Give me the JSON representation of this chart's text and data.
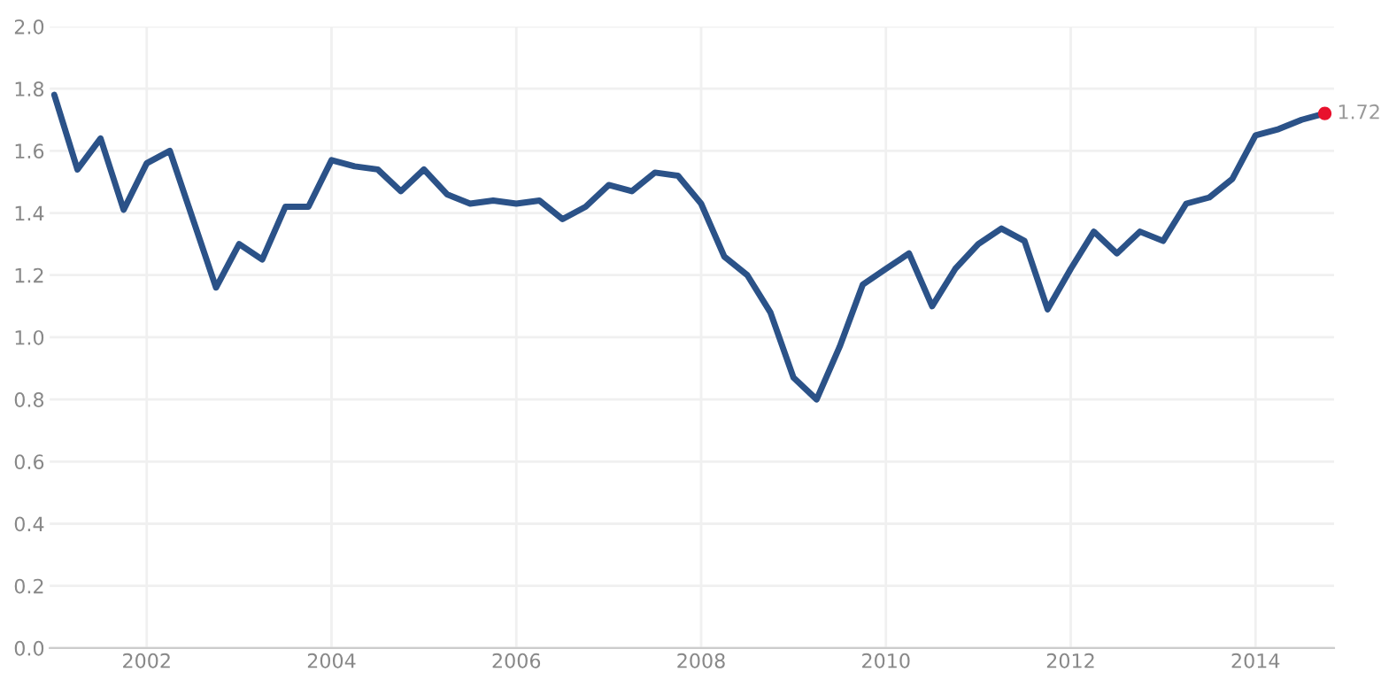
{
  "chart_data": {
    "type": "line",
    "x": [
      2001.0,
      2001.25,
      2001.5,
      2001.75,
      2002.0,
      2002.25,
      2002.5,
      2002.75,
      2003.0,
      2003.25,
      2003.5,
      2003.75,
      2004.0,
      2004.25,
      2004.5,
      2004.75,
      2005.0,
      2005.25,
      2005.5,
      2005.75,
      2006.0,
      2006.25,
      2006.5,
      2006.75,
      2007.0,
      2007.25,
      2007.5,
      2007.75,
      2008.0,
      2008.25,
      2008.5,
      2008.75,
      2009.0,
      2009.25,
      2009.5,
      2009.75,
      2010.0,
      2010.25,
      2010.5,
      2010.75,
      2011.0,
      2011.25,
      2011.5,
      2011.75,
      2012.0,
      2012.25,
      2012.5,
      2012.75,
      2013.0,
      2013.25,
      2013.5,
      2013.75,
      2014.0,
      2014.25,
      2014.5,
      2014.75
    ],
    "series": [
      {
        "color": "#2b5288",
        "values": [
          1.78,
          1.54,
          1.64,
          1.41,
          1.56,
          1.6,
          1.38,
          1.16,
          1.3,
          1.25,
          1.42,
          1.42,
          1.57,
          1.55,
          1.54,
          1.47,
          1.54,
          1.46,
          1.43,
          1.44,
          1.43,
          1.44,
          1.38,
          1.42,
          1.49,
          1.47,
          1.53,
          1.52,
          1.43,
          1.26,
          1.2,
          1.08,
          0.87,
          0.8,
          0.97,
          1.17,
          1.22,
          1.27,
          1.1,
          1.22,
          1.3,
          1.35,
          1.31,
          1.09,
          1.22,
          1.34,
          1.27,
          1.34,
          1.31,
          1.43,
          1.45,
          1.51,
          1.65,
          1.67,
          1.7,
          1.72
        ]
      },
      {
        "type": "scatter",
        "color": "#e8112d",
        "x": [
          2014.75
        ],
        "values": [
          1.72
        ],
        "value_labels": [
          "1.72"
        ]
      }
    ],
    "xlim": [
      2000.95,
      2014.85
    ],
    "xticks": [
      2002,
      2004,
      2006,
      2008,
      2010,
      2012,
      2014
    ],
    "ylim": [
      0,
      2
    ],
    "yticks": [
      {
        "value": 0,
        "label": "0.0"
      },
      {
        "value": 0.2,
        "label": "0.2"
      },
      {
        "value": 0.4,
        "label": "0.4"
      },
      {
        "value": 0.6,
        "label": "0.6"
      },
      {
        "value": 0.8,
        "label": "0.8"
      },
      {
        "value": 1.0,
        "label": "1.0"
      },
      {
        "value": 1.2,
        "label": "1.2"
      },
      {
        "value": 1.4,
        "label": "1.4"
      },
      {
        "value": 1.6,
        "label": "1.6"
      },
      {
        "value": 1.8,
        "label": "1.8"
      },
      {
        "value": 2.0,
        "label": "2.0"
      }
    ],
    "grid": true
  }
}
